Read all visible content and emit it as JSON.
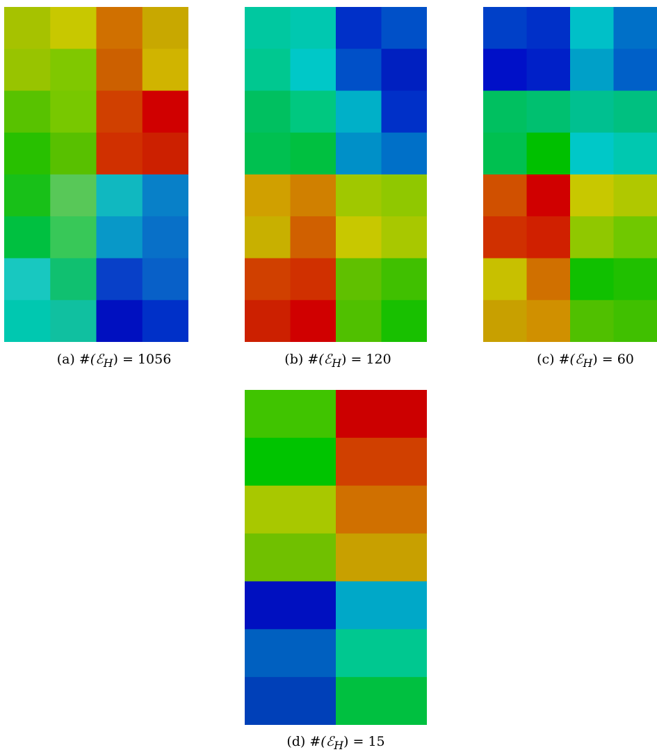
{
  "figure": {
    "panels": [
      {
        "id": "a",
        "caption": "(a) #(ℰH) = 1056",
        "caption_prefix": "(a)",
        "caption_math": "#(ℰ",
        "caption_sub": "H",
        "caption_suffix": ") = 1056",
        "cells": [
          {
            "c": "#a6c200"
          },
          {
            "c": "#c8c800"
          },
          {
            "c": "#d07000"
          },
          {
            "c": "#c8a800"
          },
          {
            "c": "#98c400"
          },
          {
            "c": "#80c800"
          },
          {
            "c": "#cc6000"
          },
          {
            "c": "#d0b400"
          },
          {
            "c": "#58c200"
          },
          {
            "c": "#78c800"
          },
          {
            "c": "#d04000"
          },
          {
            "c": "#d00000"
          },
          {
            "c": "#28c000"
          },
          {
            "c": "#58c000"
          },
          {
            "c": "#d03000"
          },
          {
            "c": "#cc2000"
          },
          {
            "c": "#18c018"
          },
          {
            "c": "#58c858"
          },
          {
            "c": "#10b8c0"
          },
          {
            "c": "#0880c8"
          },
          {
            "c": "#00c040"
          },
          {
            "c": "#38c858"
          },
          {
            "c": "#0898c8"
          },
          {
            "c": "#0870c8"
          },
          {
            "c": "#18c8c0"
          },
          {
            "c": "#10c070"
          },
          {
            "c": "#0840c8"
          },
          {
            "c": "#0860c8"
          },
          {
            "c": "#00c8b0"
          },
          {
            "c": "#10c0a0"
          },
          {
            "c": "#0010c0"
          },
          {
            "c": "#0030c8"
          }
        ]
      },
      {
        "id": "b",
        "caption_prefix": "(b)",
        "caption_math": "#(ℰ",
        "caption_sub": "H",
        "caption_suffix": ") = 120",
        "cells": [
          {
            "c": "#00c8a0"
          },
          {
            "c": "#00c8b0"
          },
          {
            "c": "#0030c8"
          },
          {
            "c": "#0050c8"
          },
          {
            "c": "#00c890"
          },
          {
            "c": "#00c8c8"
          },
          {
            "c": "#0050c8"
          },
          {
            "c": "#0020c0"
          },
          {
            "c": "#00c060"
          },
          {
            "c": "#00c880"
          },
          {
            "c": "#00b0c8"
          },
          {
            "c": "#0030c8"
          },
          {
            "c": "#00c050"
          },
          {
            "c": "#00c040"
          },
          {
            "c": "#0090c8"
          },
          {
            "c": "#0070c8"
          },
          {
            "c": "#d0a000"
          },
          {
            "c": "#d08000"
          },
          {
            "c": "#a0c800"
          },
          {
            "c": "#90c800"
          },
          {
            "c": "#c8b000"
          },
          {
            "c": "#d06000"
          },
          {
            "c": "#c8c800"
          },
          {
            "c": "#a8c800"
          },
          {
            "c": "#d04000"
          },
          {
            "c": "#d03000"
          },
          {
            "c": "#60c000"
          },
          {
            "c": "#40c000"
          },
          {
            "c": "#cc2000"
          },
          {
            "c": "#d00000"
          },
          {
            "c": "#50c000"
          },
          {
            "c": "#18c000"
          }
        ]
      },
      {
        "id": "c",
        "caption_prefix": "(c)",
        "caption_math": "#(ℰ",
        "caption_sub": "H",
        "caption_suffix": ") = 60",
        "cells": [
          {
            "c": "#0040c8"
          },
          {
            "c": "#0030c8"
          },
          {
            "c": "#00c0c8"
          },
          {
            "c": "#0070c8"
          },
          {
            "c": "#0010c8"
          },
          {
            "c": "#0020c8"
          },
          {
            "c": "#00a0c8"
          },
          {
            "c": "#0060c8"
          },
          {
            "c": "#00c060"
          },
          {
            "c": "#00c070"
          },
          {
            "c": "#00c090"
          },
          {
            "c": "#00c080"
          },
          {
            "c": "#00c050"
          },
          {
            "c": "#00c000"
          },
          {
            "c": "#00c8c8"
          },
          {
            "c": "#00c8b0"
          },
          {
            "c": "#d05000"
          },
          {
            "c": "#d00000"
          },
          {
            "c": "#c8c800"
          },
          {
            "c": "#b0c800"
          },
          {
            "c": "#d03000"
          },
          {
            "c": "#d02000"
          },
          {
            "c": "#90c800"
          },
          {
            "c": "#70c800"
          },
          {
            "c": "#c8c000"
          },
          {
            "c": "#d07000"
          },
          {
            "c": "#10c000"
          },
          {
            "c": "#20c000"
          },
          {
            "c": "#c8a000"
          },
          {
            "c": "#d09000"
          },
          {
            "c": "#50c000"
          },
          {
            "c": "#40c000"
          }
        ]
      },
      {
        "id": "d",
        "caption_prefix": "(d)",
        "caption_math": "#(ℰ",
        "caption_sub": "H",
        "caption_suffix": ") = 15",
        "cells": [
          {
            "c": "#40c400"
          },
          {
            "c": "#cc0000"
          },
          {
            "c": "#00c400"
          },
          {
            "c": "#d04000"
          },
          {
            "c": "#a8c800"
          },
          {
            "c": "#d07000"
          },
          {
            "c": "#70c000"
          },
          {
            "c": "#c8a000"
          },
          {
            "c": "#0010c0"
          },
          {
            "c": "#00a8c8"
          },
          {
            "c": "#0060c0"
          },
          {
            "c": "#00c890"
          },
          {
            "c": "#0040b8"
          },
          {
            "c": "#00c040"
          }
        ]
      }
    ]
  }
}
